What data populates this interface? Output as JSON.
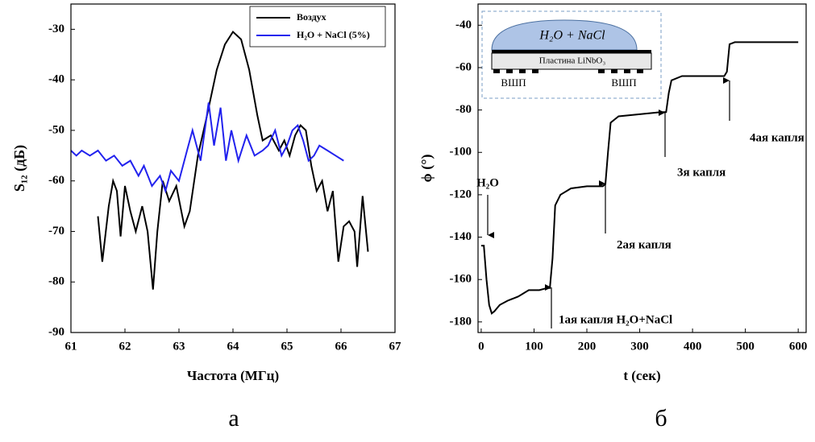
{
  "chart_data": [
    {
      "type": "line",
      "xlabel": "Частота (МГц)",
      "ylabel": "S₁₂ (дБ)",
      "caption": "а",
      "xlim": [
        61,
        67
      ],
      "xticks": [
        61,
        62,
        63,
        64,
        65,
        66,
        67
      ],
      "ylim": [
        -90,
        -25
      ],
      "yticks": [
        -90,
        -80,
        -70,
        -60,
        -50,
        -40,
        -30
      ],
      "grid": false,
      "legend": "top-right",
      "series": [
        {
          "name": "Воздух",
          "color": "#000000",
          "x": [
            61.5,
            61.58,
            61.7,
            61.78,
            61.85,
            61.92,
            62.0,
            62.1,
            62.2,
            62.32,
            62.42,
            62.52,
            62.6,
            62.7,
            62.82,
            62.95,
            63.1,
            63.2,
            63.35,
            63.5,
            63.7,
            63.85,
            64.0,
            64.15,
            64.3,
            64.45,
            64.55,
            64.7,
            64.85,
            64.95,
            65.05,
            65.15,
            65.25,
            65.35,
            65.45,
            65.55,
            65.65,
            65.75,
            65.85,
            65.95,
            66.05,
            66.15,
            66.25,
            66.3,
            66.4,
            66.5
          ],
          "values": [
            -67,
            -76,
            -65,
            -60,
            -62,
            -71,
            -61,
            -66,
            -70,
            -65,
            -70,
            -81.5,
            -70,
            -60,
            -64,
            -61,
            -69,
            -66,
            -55,
            -48,
            -38,
            -33,
            -30.5,
            -32,
            -38,
            -47,
            -52,
            -51,
            -54,
            -52,
            -55,
            -51,
            -49,
            -50,
            -57,
            -62,
            -60,
            -66,
            -62,
            -76,
            -69,
            -68,
            -70,
            -77,
            -63,
            -74
          ]
        },
        {
          "name": "H₂O + NaCl (5%)",
          "color": "#2222ee",
          "x": [
            61.0,
            61.1,
            61.2,
            61.35,
            61.5,
            61.65,
            61.8,
            61.95,
            62.1,
            62.25,
            62.35,
            62.5,
            62.65,
            62.75,
            62.85,
            63.0,
            63.15,
            63.25,
            63.4,
            63.55,
            63.65,
            63.77,
            63.87,
            63.97,
            64.1,
            64.25,
            64.4,
            64.55,
            64.65,
            64.78,
            64.9,
            65.0,
            65.1,
            65.2,
            65.3,
            65.4,
            65.5,
            65.6,
            65.75,
            65.9,
            66.05
          ],
          "values": [
            -54,
            -55,
            -54,
            -55,
            -54,
            -56,
            -55,
            -57,
            -56,
            -59,
            -57,
            -61,
            -59,
            -62,
            -58,
            -60,
            -54,
            -50,
            -56,
            -44.5,
            -53,
            -45.5,
            -56,
            -50,
            -56,
            -51,
            -55,
            -54,
            -53,
            -50,
            -55,
            -53,
            -50,
            -49,
            -52,
            -56,
            -55,
            -53,
            -54,
            -55,
            -56
          ]
        }
      ]
    },
    {
      "type": "line",
      "xlabel": "t (сек)",
      "ylabel": "ϕ (°)",
      "caption": "б",
      "xlim": [
        -6,
        615
      ],
      "xticks": [
        0,
        100,
        200,
        300,
        400,
        500,
        600
      ],
      "ylim": [
        -185,
        -30
      ],
      "yticks": [
        -180,
        -160,
        -140,
        -120,
        -100,
        -80,
        -60,
        -40
      ],
      "grid": false,
      "annotations": [
        "H₂O",
        "1ая капля H₂O+NaCl",
        "2ая капля",
        "3я капля",
        "4ая капля"
      ],
      "inset": {
        "liquid": "H₂O + NaCl",
        "plate": "Пластина LiNbO₃",
        "idt_left": "ВШП",
        "idt_right": "ВШП"
      },
      "series": [
        {
          "color": "#000000",
          "x": [
            0,
            5,
            10,
            15,
            20,
            25,
            35,
            50,
            70,
            90,
            110,
            125,
            130,
            135,
            140,
            150,
            170,
            200,
            230,
            235,
            240,
            245,
            260,
            300,
            340,
            350,
            355,
            360,
            380,
            420,
            460,
            465,
            470,
            480,
            540,
            600
          ],
          "values": [
            -144,
            -144,
            -160,
            -172,
            -176,
            -175,
            -172,
            -170,
            -168,
            -165,
            -165,
            -164,
            -164,
            -150,
            -125,
            -120,
            -117,
            -116,
            -116,
            -115,
            -100,
            -86,
            -83,
            -82,
            -81,
            -81,
            -72,
            -66,
            -64,
            -64,
            -64,
            -62,
            -49,
            -48,
            -48,
            -48
          ]
        }
      ]
    }
  ]
}
